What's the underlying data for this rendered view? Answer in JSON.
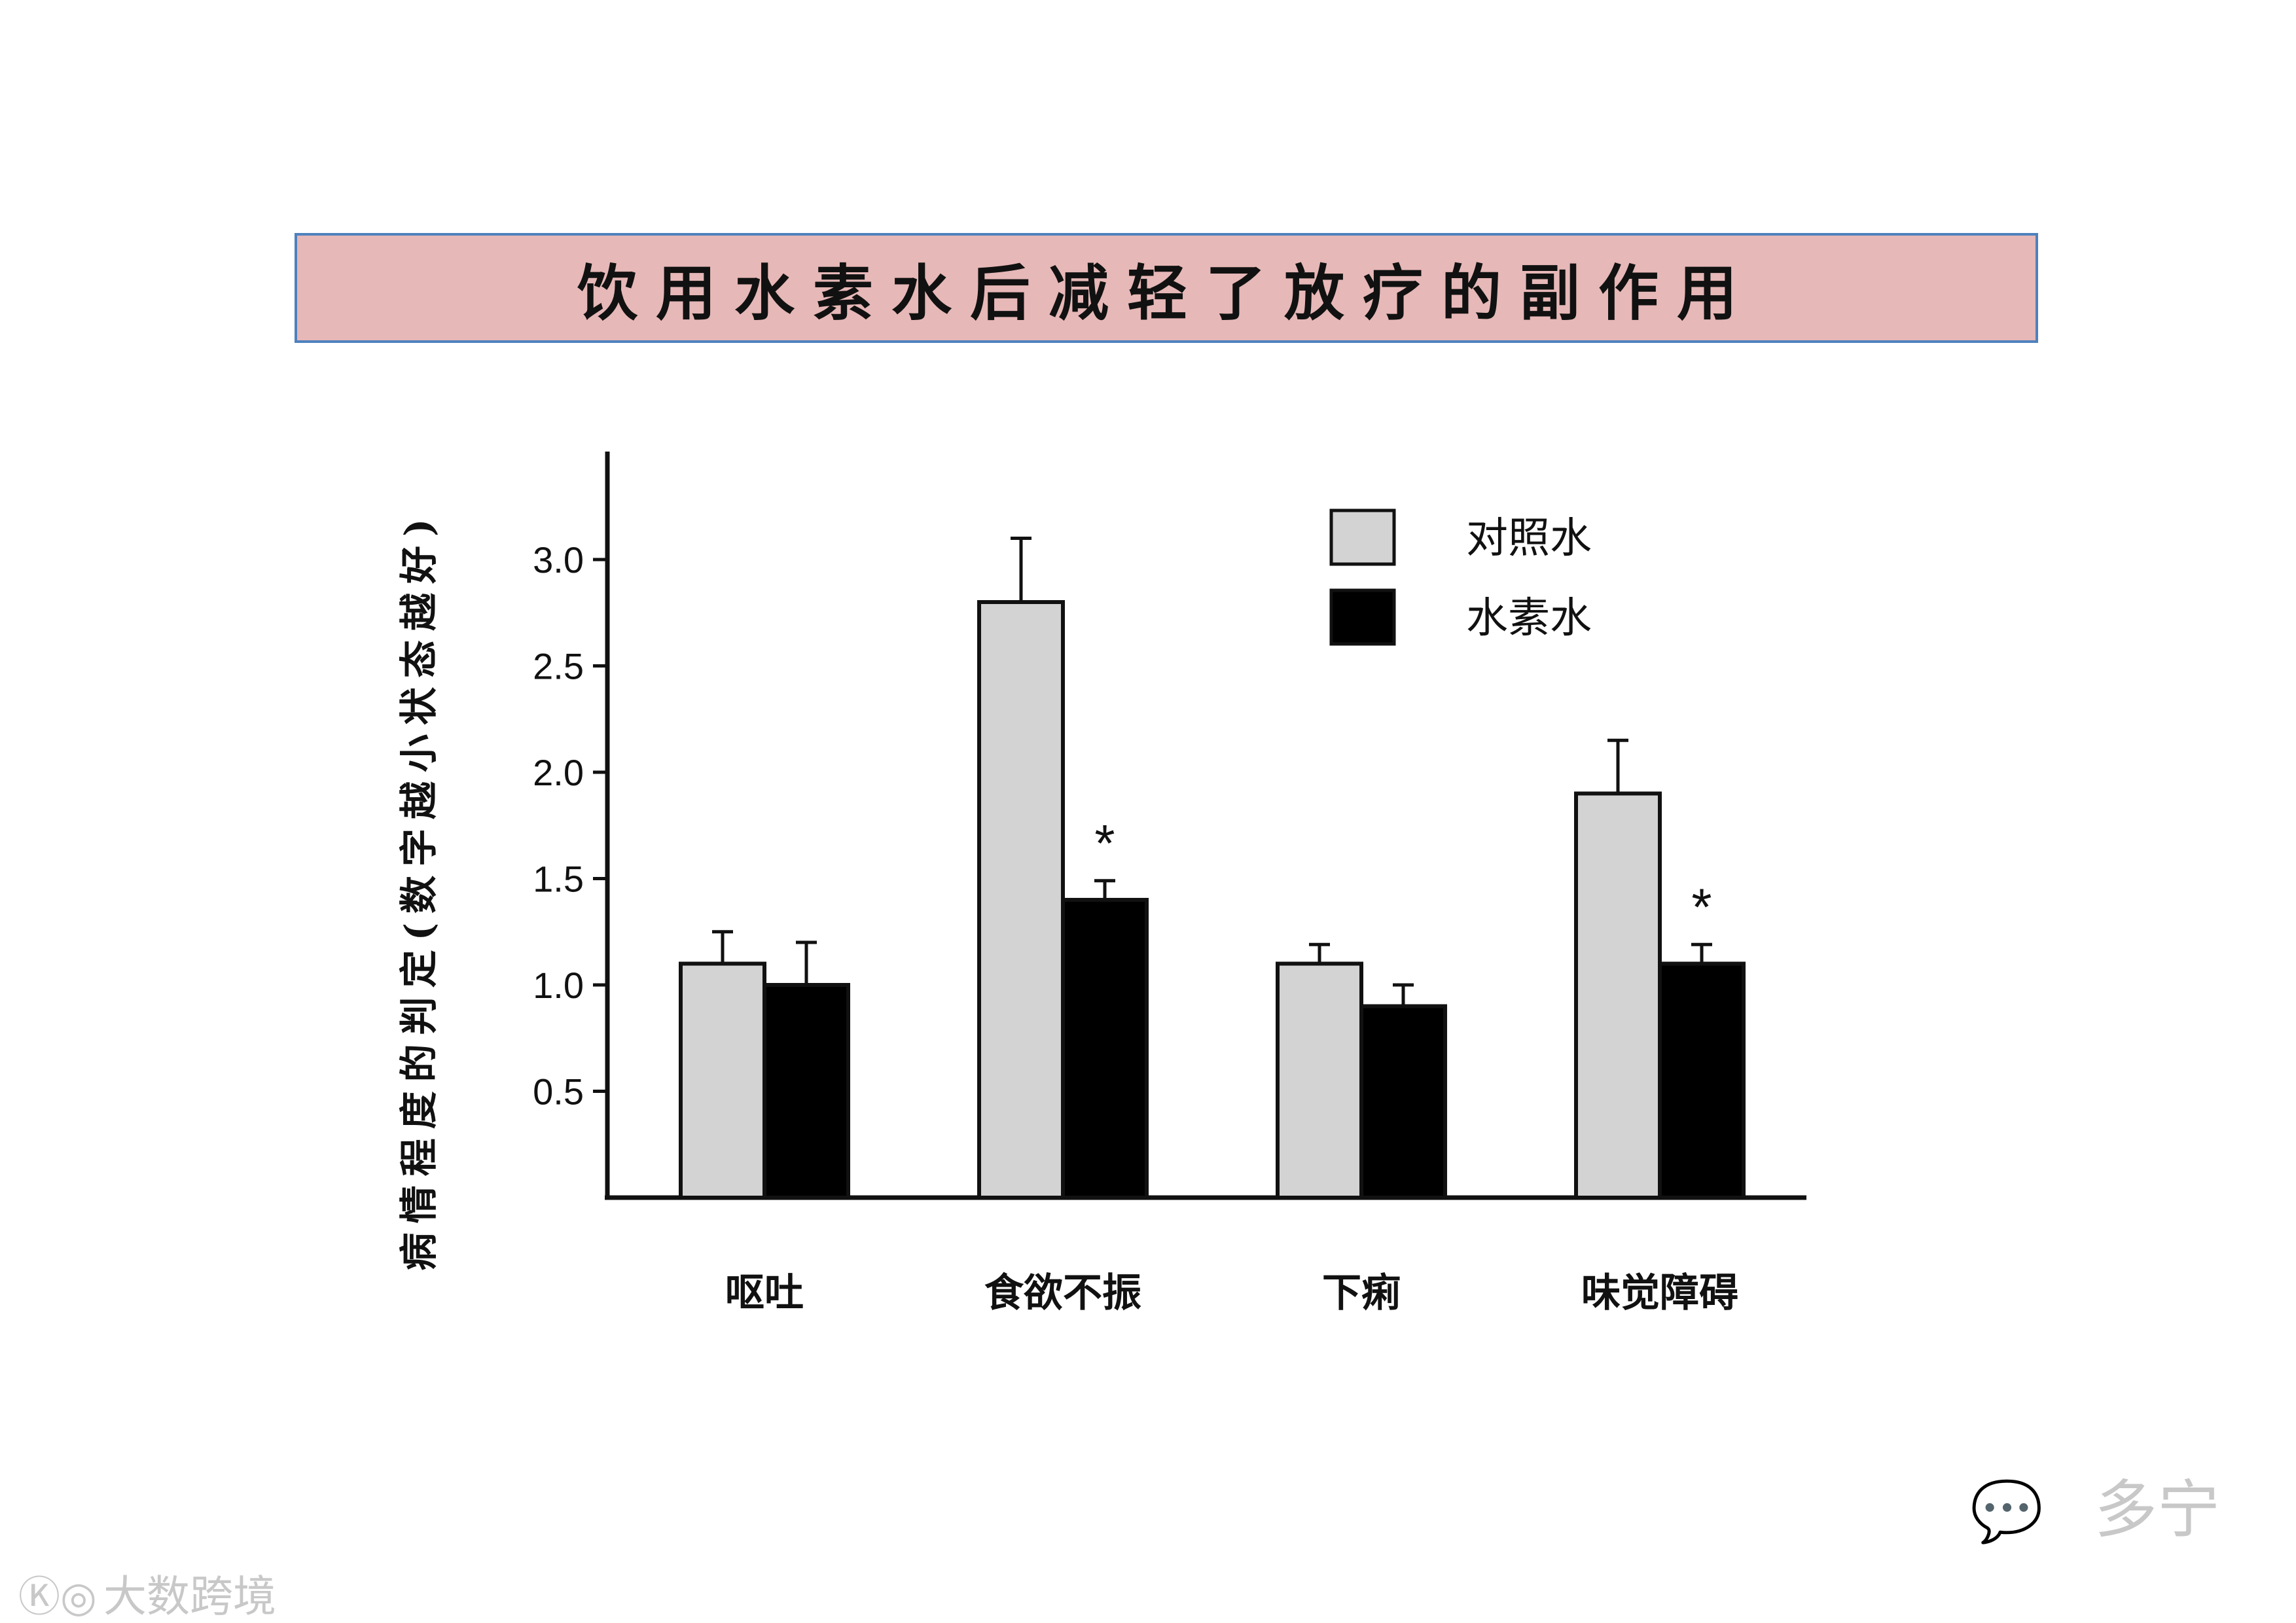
{
  "title": "饮用水素水后减轻了放疗的副作用",
  "chart_data": {
    "type": "bar",
    "categories": [
      "呕吐",
      "食欲不振",
      "下痢",
      "味觉障碍"
    ],
    "series": [
      {
        "name": "对照水",
        "color": "#d3d3d3",
        "values": [
          1.1,
          2.8,
          1.1,
          1.9
        ],
        "errors": [
          0.15,
          0.3,
          0.09,
          0.25
        ]
      },
      {
        "name": "水素水",
        "color": "#000000",
        "values": [
          1.0,
          1.4,
          0.9,
          1.1
        ],
        "errors": [
          0.2,
          0.09,
          0.1,
          0.09
        ]
      }
    ],
    "significance": [
      "",
      "*",
      "",
      "*"
    ],
    "ylabel": "病情程度的判定(数字越小状态越好)",
    "yticks": [
      "0.5",
      "1.0",
      "1.5",
      "2.0",
      "2.5",
      "3.0"
    ],
    "ylim": [
      0,
      3.5
    ],
    "legend_position": "top-right"
  },
  "watermarks": {
    "left_text": "大数跨境",
    "right_text": "多宁"
  }
}
